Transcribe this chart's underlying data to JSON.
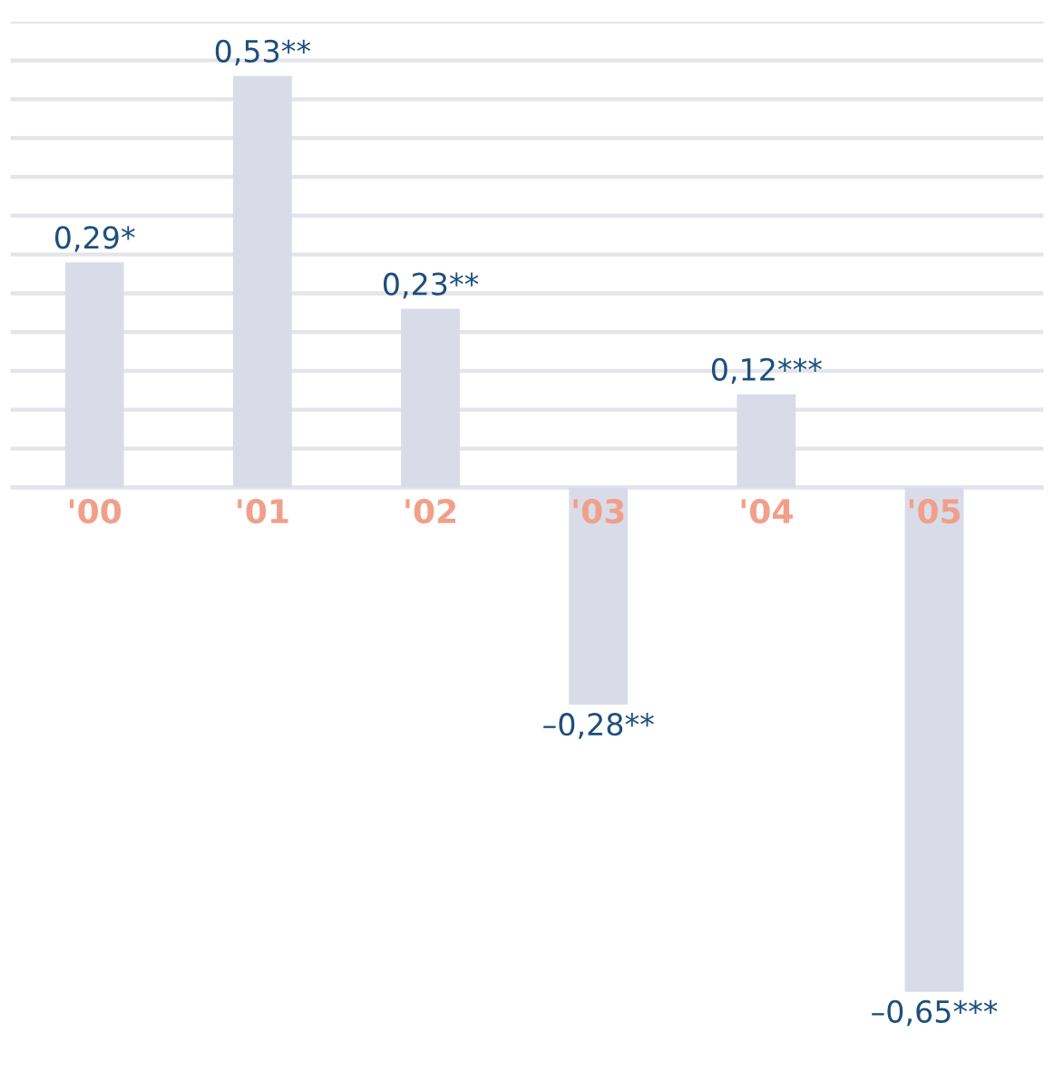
{
  "chart_data": {
    "type": "bar",
    "categories": [
      "'00",
      "'01",
      "'02",
      "'03",
      "'04",
      "'05"
    ],
    "values": [
      0.29,
      0.53,
      0.23,
      -0.28,
      0.12,
      -0.65
    ],
    "value_labels": [
      "0,29*",
      "0,53**",
      "0,23**",
      "–0,28**",
      "0,12***",
      "–0,65***"
    ],
    "color": "#d9dce8",
    "yticks": [
      {
        "value": 0,
        "label": null
      },
      {
        "value": 0.05,
        "label": null
      },
      {
        "value": 0.1,
        "label": null
      },
      {
        "value": 0.15,
        "label": null
      },
      {
        "value": 0.2,
        "label": null
      },
      {
        "value": 0.25,
        "label": null
      },
      {
        "value": 0.3,
        "label": null
      },
      {
        "value": 0.35,
        "label": null
      },
      {
        "value": 0.4,
        "label": null
      },
      {
        "value": 0.45,
        "label": null
      },
      {
        "value": 0.5,
        "label": null
      },
      {
        "value": 0.55,
        "label": null
      },
      {
        "value": 0.6,
        "label": null
      }
    ],
    "grid": "y",
    "tick_labels": "x"
  }
}
